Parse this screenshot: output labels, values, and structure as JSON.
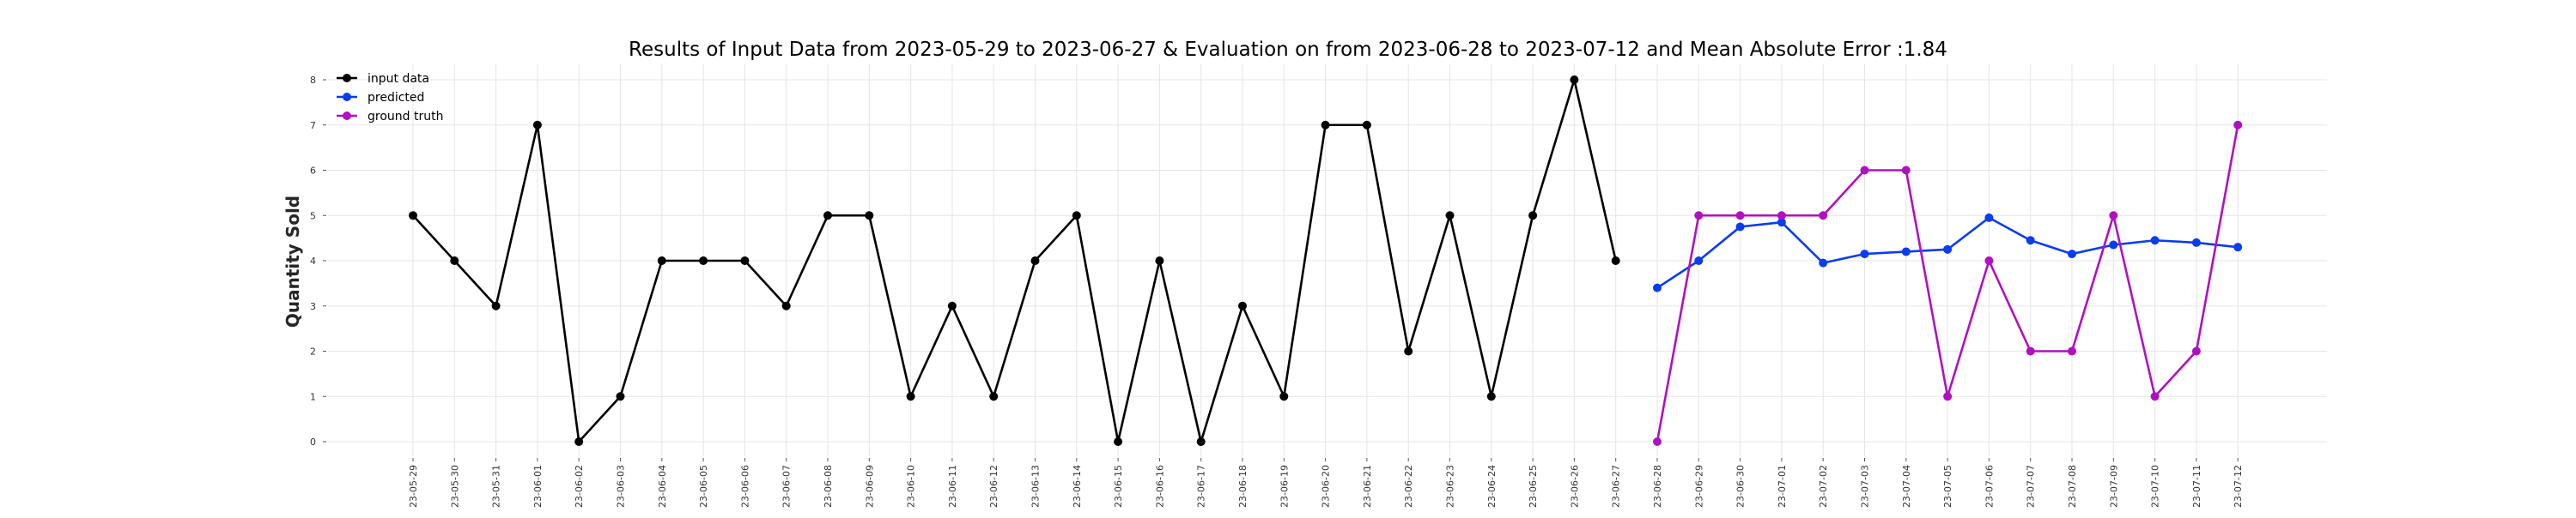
{
  "chart_data": {
    "type": "line",
    "title": "Results of Input Data from 2023-05-29 to 2023-06-27 & Evaluation on from 2023-06-28 to 2023-07-12 and Mean Absolute Error  :1.84",
    "xlabel": "",
    "ylabel": "Quantity Sold",
    "ylim": [
      0,
      8
    ],
    "yticks": [
      0,
      1,
      2,
      3,
      4,
      5,
      6,
      7,
      8
    ],
    "grid": true,
    "legend_position": "top-left",
    "categories": [
      "2023-05-29",
      "2023-05-30",
      "2023-05-31",
      "2023-06-01",
      "2023-06-02",
      "2023-06-03",
      "2023-06-04",
      "2023-06-05",
      "2023-06-06",
      "2023-06-07",
      "2023-06-08",
      "2023-06-09",
      "2023-06-10",
      "2023-06-11",
      "2023-06-12",
      "2023-06-13",
      "2023-06-14",
      "2023-06-15",
      "2023-06-16",
      "2023-06-17",
      "2023-06-18",
      "2023-06-19",
      "2023-06-20",
      "2023-06-21",
      "2023-06-22",
      "2023-06-23",
      "2023-06-24",
      "2023-06-25",
      "2023-06-26",
      "2023-06-27",
      "2023-06-28",
      "2023-06-29",
      "2023-06-30",
      "2023-07-01",
      "2023-07-02",
      "2023-07-03",
      "2023-07-04",
      "2023-07-05",
      "2023-07-06",
      "2023-07-07",
      "2023-07-08",
      "2023-07-09",
      "2023-07-10",
      "2023-07-11",
      "2023-07-12"
    ],
    "tick_labels": [
      "23-05-29",
      "23-05-30",
      "23-05-31",
      "23-06-01",
      "23-06-02",
      "23-06-03",
      "23-06-04",
      "23-06-05",
      "23-06-06",
      "23-06-07",
      "23-06-08",
      "23-06-09",
      "23-06-10",
      "23-06-11",
      "23-06-12",
      "23-06-13",
      "23-06-14",
      "23-06-15",
      "23-06-16",
      "23-06-17",
      "23-06-18",
      "23-06-19",
      "23-06-20",
      "23-06-21",
      "23-06-22",
      "23-06-23",
      "23-06-24",
      "23-06-25",
      "23-06-26",
      "23-06-27",
      "23-06-28",
      "23-06-29",
      "23-06-30",
      "23-07-01",
      "23-07-02",
      "23-07-03",
      "23-07-04",
      "23-07-05",
      "23-07-06",
      "23-07-07",
      "23-07-08",
      "23-07-09",
      "23-07-10",
      "23-07-11",
      "23-07-12"
    ],
    "series": [
      {
        "name": "input data",
        "color": "#000000",
        "x": [
          "2023-05-29",
          "2023-05-30",
          "2023-05-31",
          "2023-06-01",
          "2023-06-02",
          "2023-06-03",
          "2023-06-04",
          "2023-06-05",
          "2023-06-06",
          "2023-06-07",
          "2023-06-08",
          "2023-06-09",
          "2023-06-10",
          "2023-06-11",
          "2023-06-12",
          "2023-06-13",
          "2023-06-14",
          "2023-06-15",
          "2023-06-16",
          "2023-06-17",
          "2023-06-18",
          "2023-06-19",
          "2023-06-20",
          "2023-06-21",
          "2023-06-22",
          "2023-06-23",
          "2023-06-24",
          "2023-06-25",
          "2023-06-26",
          "2023-06-27"
        ],
        "values": [
          5,
          4,
          3,
          7,
          0,
          1,
          4,
          4,
          4,
          3,
          5,
          5,
          1,
          3,
          1,
          4,
          5,
          0,
          4,
          0,
          3,
          1,
          7,
          7,
          2,
          5,
          1,
          5,
          8,
          4
        ]
      },
      {
        "name": "predicted",
        "color": "#0a3cf0",
        "x": [
          "2023-06-28",
          "2023-06-29",
          "2023-06-30",
          "2023-07-01",
          "2023-07-02",
          "2023-07-03",
          "2023-07-04",
          "2023-07-05",
          "2023-07-06",
          "2023-07-07",
          "2023-07-08",
          "2023-07-09",
          "2023-07-10",
          "2023-07-11",
          "2023-07-12"
        ],
        "values": [
          3.4,
          4.0,
          4.75,
          4.85,
          3.95,
          4.15,
          4.2,
          4.25,
          4.95,
          4.45,
          4.15,
          4.35,
          4.45,
          4.4,
          4.3
        ]
      },
      {
        "name": "ground truth",
        "color": "#b010c0",
        "x": [
          "2023-06-28",
          "2023-06-29",
          "2023-06-30",
          "2023-07-01",
          "2023-07-02",
          "2023-07-03",
          "2023-07-04",
          "2023-07-05",
          "2023-07-06",
          "2023-07-07",
          "2023-07-08",
          "2023-07-09",
          "2023-07-10",
          "2023-07-11",
          "2023-07-12"
        ],
        "values": [
          0,
          5,
          5,
          5,
          5,
          6,
          6,
          1,
          4,
          2,
          2,
          5,
          1,
          2,
          7
        ]
      }
    ]
  }
}
